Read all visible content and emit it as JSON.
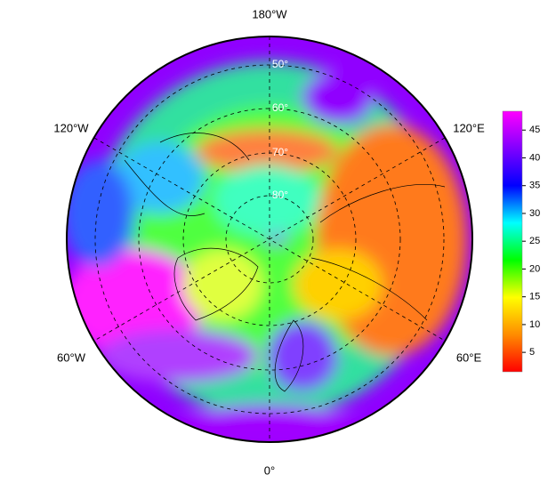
{
  "map": {
    "longitude_labels": [
      "180°W",
      "120°W",
      "120°E",
      "60°W",
      "60°E",
      "0°"
    ],
    "latitude_labels": [
      "50°",
      "60°",
      "70°",
      "80°"
    ]
  },
  "colorbar": {
    "lim": [
      1.5,
      48.4
    ],
    "ticks": [
      5,
      10,
      15,
      20,
      25,
      30,
      35,
      40,
      45
    ],
    "colors": [
      "#ff0000",
      "#ff8c00",
      "#ffff00",
      "#00ff00",
      "#00ffff",
      "#0000ff",
      "#8000ff",
      "#ff00ff"
    ]
  }
}
